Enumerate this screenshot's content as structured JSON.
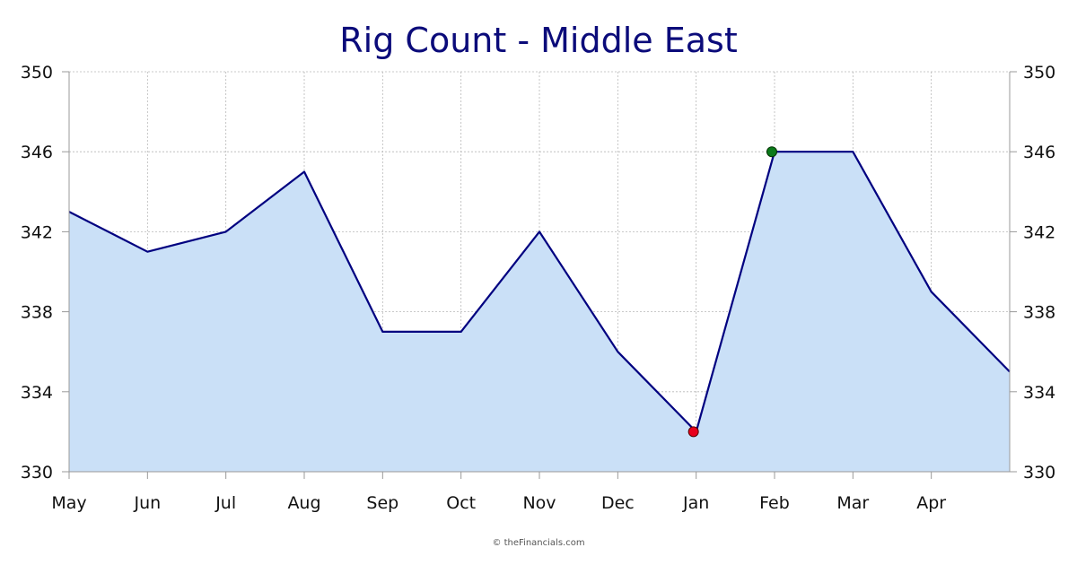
{
  "chart_data": {
    "type": "area",
    "title": "Rig Count - Middle East",
    "xlabel": "",
    "ylabel": "",
    "categories": [
      "May",
      "Jun",
      "Jul",
      "Aug",
      "Sep",
      "Oct",
      "Nov",
      "Dec",
      "Jan",
      "Feb",
      "Mar",
      "Apr"
    ],
    "x": [
      "May",
      "Jun",
      "Jul",
      "Aug",
      "Sep",
      "Oct",
      "Nov",
      "Dec",
      "Jan",
      "Feb",
      "Mar",
      "Apr",
      ""
    ],
    "values": [
      343,
      341,
      342,
      345,
      337,
      337,
      342,
      336,
      332,
      346,
      346,
      339,
      335
    ],
    "ylim": [
      330,
      350
    ],
    "yticks": [
      350,
      346,
      342,
      338,
      334,
      330
    ],
    "grid": true,
    "y_axis_both_sides": true,
    "min_point": {
      "x": "Jan",
      "value": 332
    },
    "max_point": {
      "x": "Feb",
      "value": 346
    },
    "colors": {
      "line": "#000080",
      "fill": "#cae0f7",
      "min_marker": "#e8001c",
      "max_marker": "#0a7a1a",
      "title": "#0b0b7a"
    }
  },
  "footer": {
    "credit": "© theFinancials.com"
  }
}
